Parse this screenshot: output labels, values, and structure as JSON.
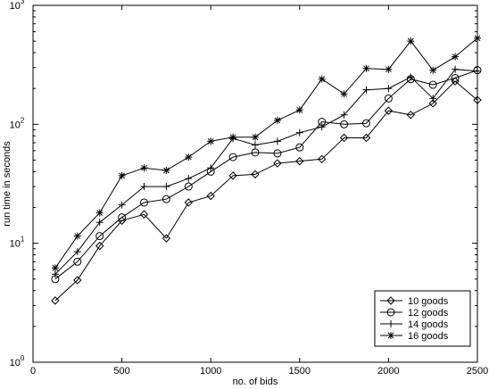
{
  "chart_data": {
    "type": "line",
    "title": "",
    "xlabel": "no. of bids",
    "ylabel": "run time in seconds",
    "xlim": [
      0,
      2500
    ],
    "ylim": [
      1,
      1000
    ],
    "yscale": "log",
    "grid": false,
    "legend_position": "bottom-right",
    "xticks": [
      0,
      500,
      1000,
      1500,
      2000,
      2500
    ],
    "xtick_labels": [
      "0",
      "500",
      "1000",
      "1500",
      "2000",
      "2500"
    ],
    "yticks": [
      1,
      10,
      100,
      1000
    ],
    "ytick_bases": [
      "10",
      "10",
      "10",
      "10"
    ],
    "ytick_exponents": [
      "0",
      "1",
      "2",
      "3"
    ],
    "x": [
      125,
      250,
      375,
      500,
      625,
      750,
      875,
      1000,
      1125,
      1250,
      1375,
      1500,
      1625,
      1750,
      1875,
      2000,
      2125,
      2250,
      2375,
      2500
    ],
    "series": [
      {
        "name": "10 goods",
        "marker": "diamond",
        "values": [
          3.3,
          4.9,
          9.5,
          15.5,
          17.5,
          11,
          22,
          25,
          37,
          38,
          47,
          49,
          51,
          77,
          77,
          130,
          120,
          150,
          230,
          160
        ]
      },
      {
        "name": "12 goods",
        "marker": "circle",
        "values": [
          5.0,
          7.0,
          11.5,
          16.5,
          22,
          23.5,
          30,
          40,
          53,
          58,
          57,
          64,
          105,
          100,
          102,
          165,
          240,
          215,
          245,
          285
        ]
      },
      {
        "name": "14 goods",
        "marker": "plus",
        "values": [
          5.5,
          8.5,
          15,
          21,
          30,
          30,
          35,
          43,
          76,
          67,
          72,
          85,
          95,
          120,
          195,
          200,
          250,
          165,
          290,
          280
        ]
      },
      {
        "name": "16 goods",
        "marker": "star",
        "values": [
          6.2,
          11.5,
          18,
          37,
          43,
          41,
          53,
          72,
          78,
          78,
          108,
          132,
          240,
          180,
          295,
          290,
          500,
          285,
          370,
          530
        ]
      }
    ]
  }
}
